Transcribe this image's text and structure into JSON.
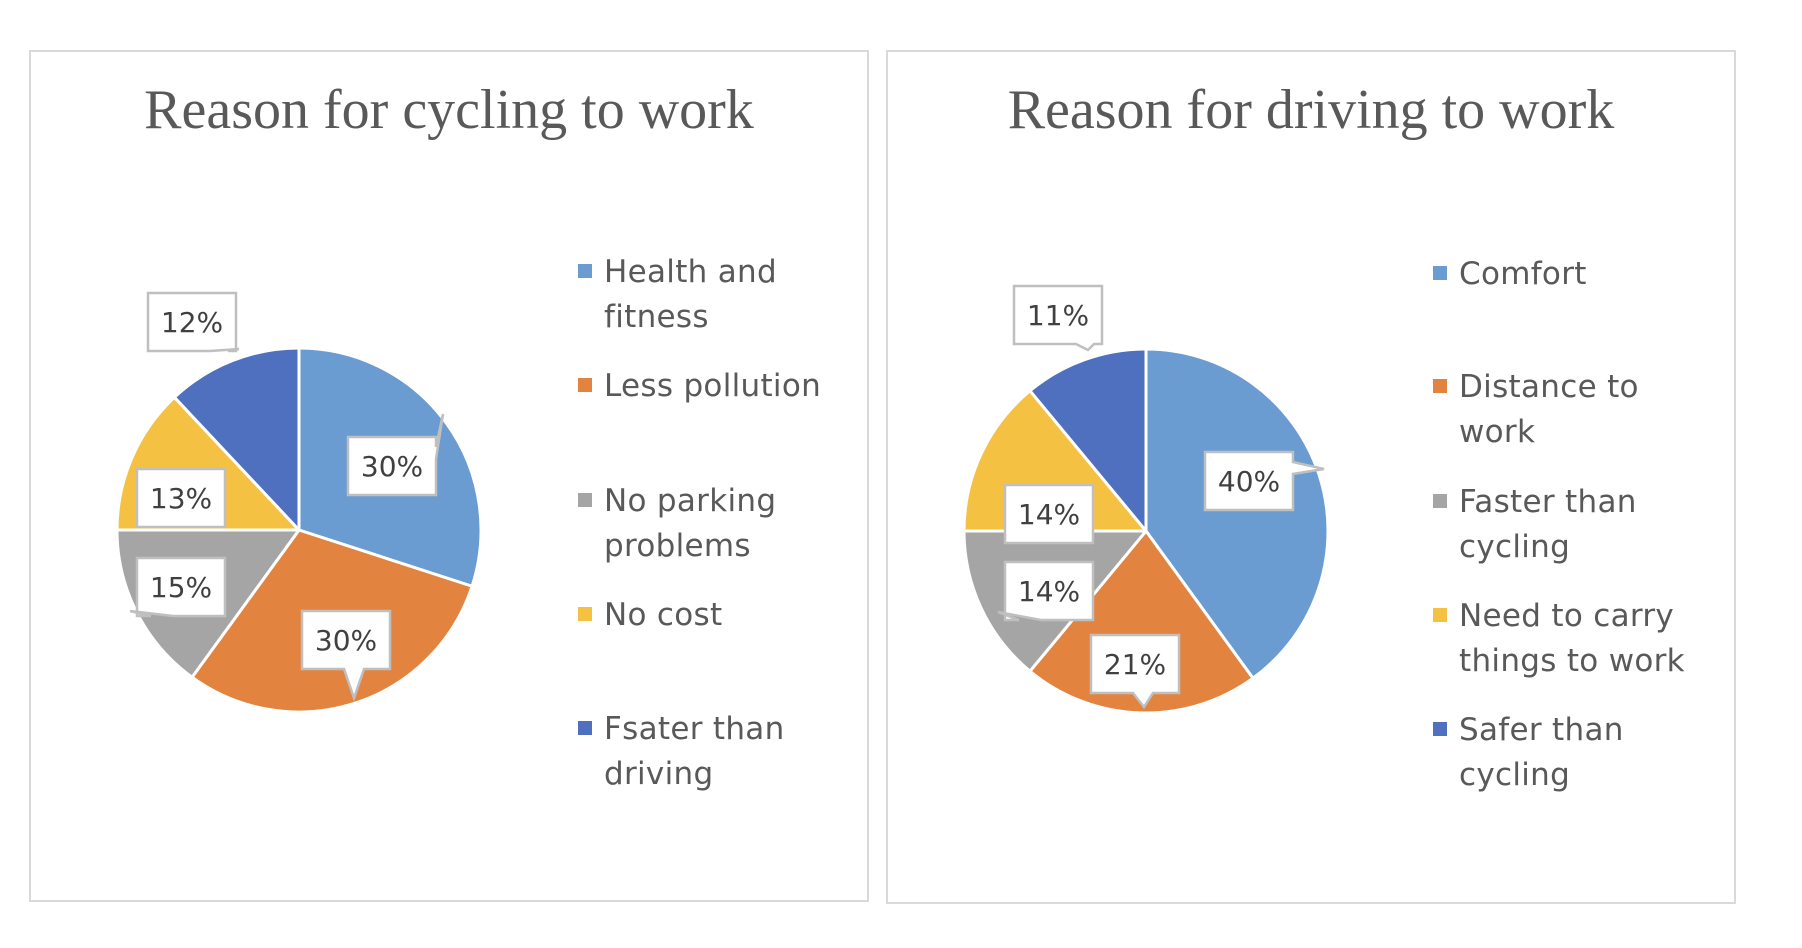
{
  "chart_data": [
    {
      "type": "pie",
      "title": "Reason for cycling to work",
      "categories": [
        "Health and fitness",
        "Less pollution",
        "No parking problems",
        "No cost",
        "Fsater than driving"
      ],
      "values": [
        30,
        30,
        15,
        13,
        12
      ],
      "labels": [
        "30%",
        "30%",
        "15%",
        "13%",
        "12%"
      ],
      "colors": [
        "#6a9bd1",
        "#e2843f",
        "#a5a5a5",
        "#f5c143",
        "#4f70bf"
      ],
      "legend": "right"
    },
    {
      "type": "pie",
      "title": "Reason for driving to work",
      "categories": [
        "Comfort",
        "Distance to work",
        "Faster than cycling",
        "Need to carry things to work",
        "Safer than cycling"
      ],
      "values": [
        40,
        21,
        14,
        14,
        11
      ],
      "labels": [
        "40%",
        "21%",
        "14%",
        "14%",
        "11%"
      ],
      "colors": [
        "#6a9bd1",
        "#e2843f",
        "#a5a5a5",
        "#f5c143",
        "#4f70bf"
      ],
      "legend": "right"
    }
  ]
}
